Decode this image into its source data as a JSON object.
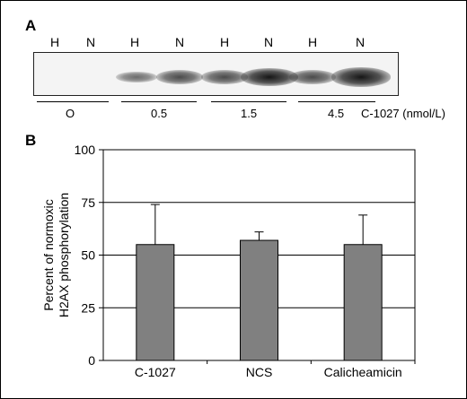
{
  "panel_a": {
    "letter": "A",
    "lanes": [
      "H",
      "N",
      "H",
      "N",
      "H",
      "N",
      "H",
      "N"
    ],
    "groups": [
      "O",
      "0.5",
      "1.5",
      "4.5"
    ],
    "unit_label": "C-1027 (nmol/L)",
    "band_intensity": [
      0,
      0,
      0.35,
      0.55,
      0.55,
      0.9,
      0.55,
      0.95
    ]
  },
  "panel_b": {
    "letter": "B"
  },
  "chart_data": {
    "type": "bar",
    "categories": [
      "C-1027",
      "NCS",
      "Calicheamicin"
    ],
    "series": [
      {
        "values": [
          55,
          57,
          55
        ],
        "error_upper": [
          19,
          4,
          14
        ]
      }
    ],
    "title": "",
    "xlabel": "",
    "ylabel_lines": [
      "Percent of normoxic",
      "H2AX phosphorylation"
    ],
    "ylim": [
      0,
      100
    ],
    "yticks": [
      "0",
      "25",
      "50",
      "75",
      "100"
    ],
    "ytick_values": [
      0,
      25,
      50,
      75,
      100
    ],
    "grid": true,
    "bar_color": "#808080"
  }
}
